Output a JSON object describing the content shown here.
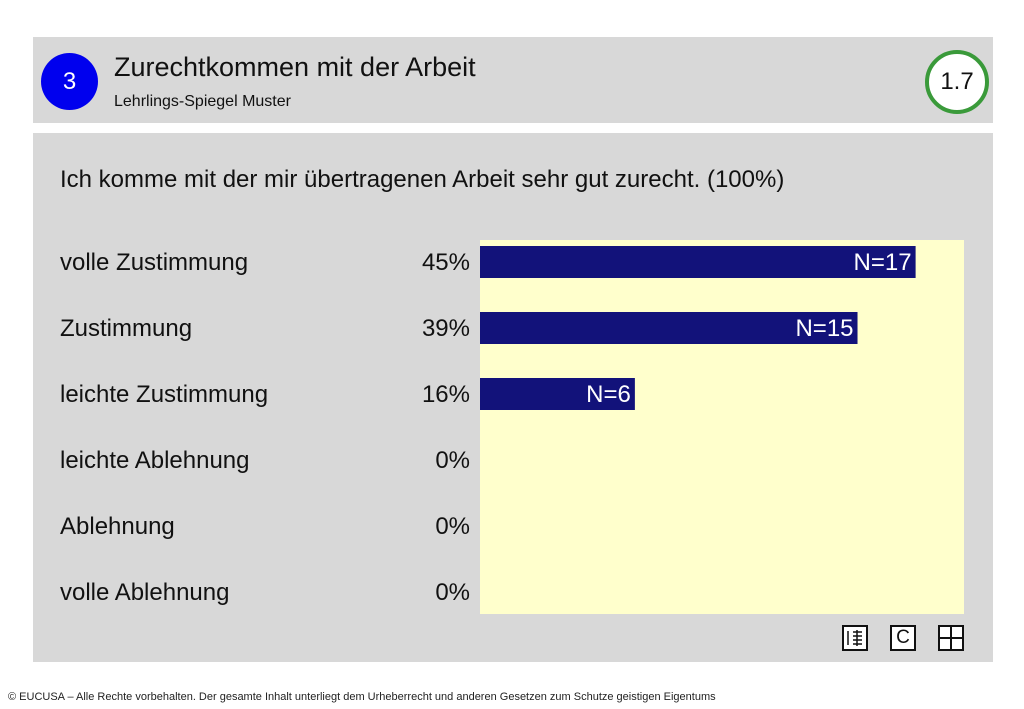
{
  "header": {
    "section_number": "3",
    "title": "Zurechtkommen mit der Arbeit",
    "subtitle": "Lehrlings-Spiegel Muster",
    "page_number": "1.7"
  },
  "question": "Ich komme mit der mir übertragenen Arbeit sehr gut zurecht. (100%)",
  "chart_data": {
    "type": "bar",
    "orientation": "horizontal",
    "categories": [
      "volle Zustimmung",
      "Zustimmung",
      "leichte Zustimmung",
      "leichte Ablehnung",
      "Ablehnung",
      "volle Ablehnung"
    ],
    "values": [
      45,
      39,
      16,
      0,
      0,
      0
    ],
    "percent_labels": [
      "45%",
      "39%",
      "16%",
      "0%",
      "0%",
      "0%"
    ],
    "n_labels": [
      "N=17",
      "N=15",
      "N=6",
      "",
      "",
      ""
    ],
    "xlim": [
      0,
      50
    ],
    "grid": false,
    "colors": {
      "bar": "#12127a",
      "plot_background": "#ffffcc",
      "n_label_outside": "#12127a",
      "n_label_inside": "#ffffff"
    }
  },
  "icons": [
    {
      "name": "list-view-icon"
    },
    {
      "name": "c-icon",
      "label": "C"
    },
    {
      "name": "grid-view-icon"
    }
  ],
  "footer": {
    "copyright": "© EUCUSA – Alle Rechte vorbehalten. Der gesamte Inhalt unterliegt dem Urheberrecht und anderen Gesetzen zum Schutze geistigen Eigentums"
  }
}
